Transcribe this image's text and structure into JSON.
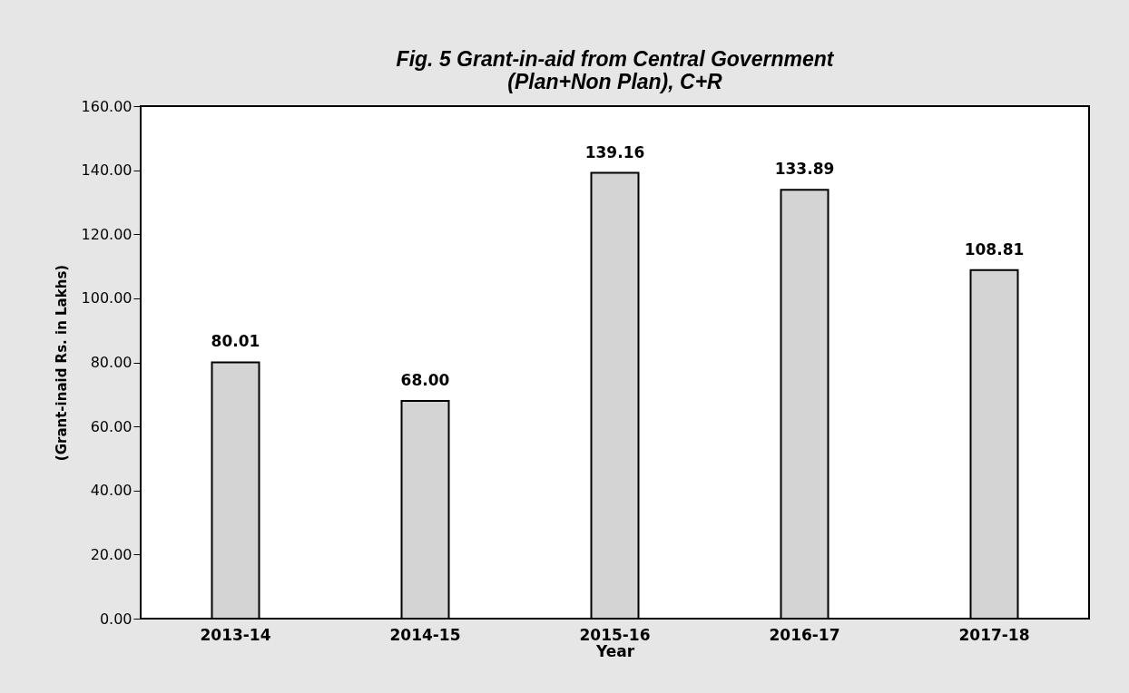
{
  "chart_data": {
    "type": "bar",
    "title": "Fig. 5 Grant-in-aid from Central Government\n(Plan+Non Plan), C+R",
    "xlabel": "Year",
    "ylabel": "(Grant-inaid Rs. in Lakhs)",
    "categories": [
      "2013-14",
      "2014-15",
      "2015-16",
      "2016-17",
      "2017-18"
    ],
    "values": [
      80.01,
      68.0,
      139.16,
      133.89,
      108.81
    ],
    "value_labels": [
      "80.01",
      "68.00",
      "139.16",
      "133.89",
      "108.81"
    ],
    "color": "#d4d4d4",
    "ylim": [
      0,
      160
    ],
    "yticks": [
      {
        "value": 0,
        "label": "0.00"
      },
      {
        "value": 20,
        "label": "20.00"
      },
      {
        "value": 40,
        "label": "40.00"
      },
      {
        "value": 60,
        "label": "60.00"
      },
      {
        "value": 80,
        "label": "80.00"
      },
      {
        "value": 100,
        "label": "100.00"
      },
      {
        "value": 120,
        "label": "120.00"
      },
      {
        "value": 140,
        "label": "140.00"
      },
      {
        "value": 160,
        "label": "160.00"
      }
    ],
    "grid": false
  }
}
